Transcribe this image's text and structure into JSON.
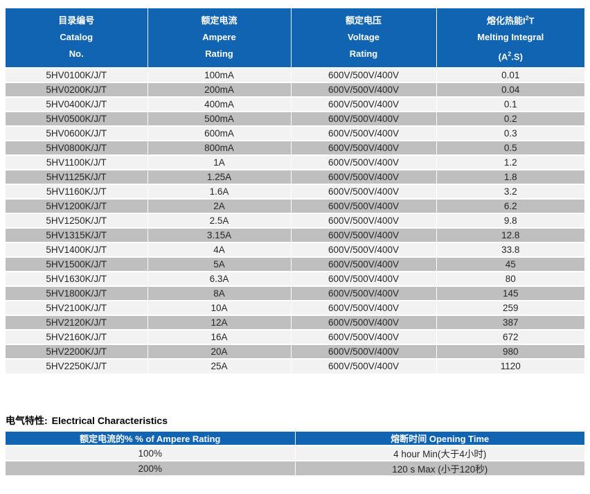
{
  "colors": {
    "header_bg": "#1164b1",
    "header_text": "#ffffff",
    "row_light": "#f2f2f2",
    "row_dark": "#bfbfbf",
    "body_text": "#262626"
  },
  "main_table": {
    "headers": [
      {
        "zh": "目录编号",
        "en1": "Catalog",
        "en2": "No."
      },
      {
        "zh": "额定电流",
        "en1": "Ampere",
        "en2": "Rating"
      },
      {
        "zh": "额定电压",
        "en1": "Voltage",
        "en2": "Rating"
      },
      {
        "zh_pre": "熔化热能I",
        "zh_sup": "2",
        "zh_post": "T",
        "en1": "Melting Integral",
        "unit_pre": "(A",
        "unit_sup": "2",
        "unit_post": ".S)"
      }
    ],
    "rows": [
      {
        "catalog": "5HV0100K/J/T",
        "ampere": "100mA",
        "voltage": "600V/500V/400V",
        "i2t": "0.01"
      },
      {
        "catalog": "5HV0200K/J/T",
        "ampere": "200mA",
        "voltage": "600V/500V/400V",
        "i2t": "0.04"
      },
      {
        "catalog": "5HV0400K/J/T",
        "ampere": "400mA",
        "voltage": "600V/500V/400V",
        "i2t": "0.1"
      },
      {
        "catalog": "5HV0500K/J/T",
        "ampere": "500mA",
        "voltage": "600V/500V/400V",
        "i2t": "0.2"
      },
      {
        "catalog": "5HV0600K/J/T",
        "ampere": "600mA",
        "voltage": "600V/500V/400V",
        "i2t": "0.3"
      },
      {
        "catalog": "5HV0800K/J/T",
        "ampere": "800mA",
        "voltage": "600V/500V/400V",
        "i2t": "0.5"
      },
      {
        "catalog": "5HV1100K/J/T",
        "ampere": "1A",
        "voltage": "600V/500V/400V",
        "i2t": "1.2"
      },
      {
        "catalog": "5HV1125K/J/T",
        "ampere": "1.25A",
        "voltage": "600V/500V/400V",
        "i2t": "1.8"
      },
      {
        "catalog": "5HV1160K/J/T",
        "ampere": "1.6A",
        "voltage": "600V/500V/400V",
        "i2t": "3.2"
      },
      {
        "catalog": "5HV1200K/J/T",
        "ampere": "2A",
        "voltage": "600V/500V/400V",
        "i2t": "6.2"
      },
      {
        "catalog": "5HV1250K/J/T",
        "ampere": "2.5A",
        "voltage": "600V/500V/400V",
        "i2t": "9.8"
      },
      {
        "catalog": "5HV1315K/J/T",
        "ampere": "3.15A",
        "voltage": "600V/500V/400V",
        "i2t": "12.8"
      },
      {
        "catalog": "5HV1400K/J/T",
        "ampere": "4A",
        "voltage": "600V/500V/400V",
        "i2t": "33.8"
      },
      {
        "catalog": "5HV1500K/J/T",
        "ampere": "5A",
        "voltage": "600V/500V/400V",
        "i2t": "45"
      },
      {
        "catalog": "5HV1630K/J/T",
        "ampere": "6.3A",
        "voltage": "600V/500V/400V",
        "i2t": "80"
      },
      {
        "catalog": "5HV1800K/J/T",
        "ampere": "8A",
        "voltage": "600V/500V/400V",
        "i2t": "145"
      },
      {
        "catalog": "5HV2100K/J/T",
        "ampere": "10A",
        "voltage": "600V/500V/400V",
        "i2t": "259"
      },
      {
        "catalog": "5HV2120K/J/T",
        "ampere": "12A",
        "voltage": "600V/500V/400V",
        "i2t": "387"
      },
      {
        "catalog": "5HV2160K/J/T",
        "ampere": "16A",
        "voltage": "600V/500V/400V",
        "i2t": "672"
      },
      {
        "catalog": "5HV2200K/J/T",
        "ampere": "20A",
        "voltage": "600V/500V/400V",
        "i2t": "980"
      },
      {
        "catalog": "5HV2250K/J/T",
        "ampere": "25A",
        "voltage": "600V/500V/400V",
        "i2t": "1120"
      }
    ]
  },
  "section": {
    "title_zh": "电气特性:",
    "title_en": "Electrical Characteristics"
  },
  "elec_table": {
    "headers": [
      "额定电流的%  % of Ampere Rating",
      "熔断时间 Opening Time"
    ],
    "rows": [
      {
        "percent": "100%",
        "time": "4 hour Min(大于4小时)"
      },
      {
        "percent": "200%",
        "time": "120 s Max (小于120秒)"
      }
    ]
  }
}
